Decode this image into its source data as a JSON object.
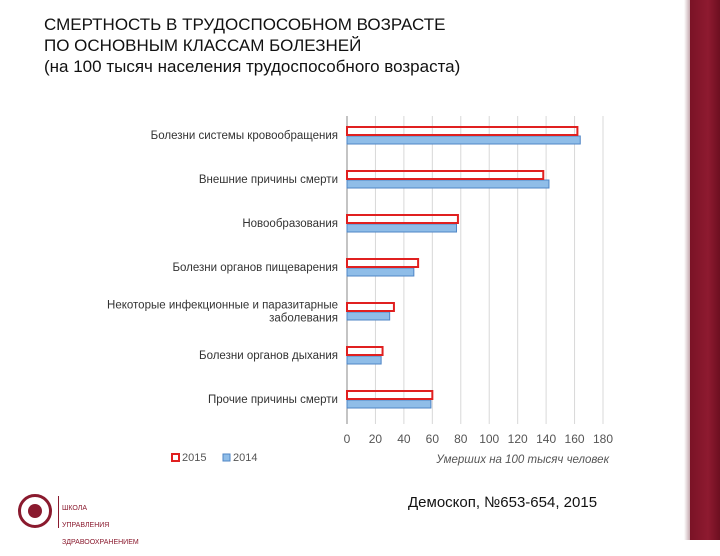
{
  "title_lines": [
    "СМЕРТНОСТЬ  В ТРУДОСПОСОБНОМ ВОЗРАСТЕ",
    "ПО ОСНОВНЫМ КЛАССАМ БОЛЕЗНЕЙ"
  ],
  "subtitle": "(на 100 тысяч населения трудоспособного возраста)",
  "source": "Демоскоп, №653-654, 2015",
  "logo": {
    "text_lines": [
      "ШКОЛА",
      "УПРАВЛЕНИЯ",
      "ЗДРАВООХРАНЕНИЕМ"
    ]
  },
  "colors": {
    "accent_band": "#8e1a30",
    "series_2015": "#e02020",
    "series_2014": "#8fbde8",
    "series_2014_border": "#4f86c6",
    "grid": "#d8d8d8"
  },
  "chart_data": {
    "type": "bar",
    "orientation": "horizontal",
    "categories": [
      [
        "Болезни системы кровообращения"
      ],
      [
        "Внешние причины смерти"
      ],
      [
        "Новообразования"
      ],
      [
        "Болезни органов пищеварения"
      ],
      [
        "Некоторые инфекционные и паразитарные",
        "заболевания"
      ],
      [
        "Болезни органов дыхания"
      ],
      [
        "Прочие причины смерти"
      ]
    ],
    "series": [
      {
        "name": "2015",
        "values": [
          162,
          138,
          78,
          50,
          33,
          25,
          60
        ]
      },
      {
        "name": "2014",
        "values": [
          164,
          142,
          77,
          47,
          30,
          24,
          59
        ]
      }
    ],
    "xlabel": "Умерших на 100 тысяч человек",
    "xlim": [
      0,
      180
    ],
    "xticks": [
      "0",
      "20",
      "40",
      "60",
      "80",
      "100",
      "120",
      "140",
      "160",
      "180"
    ],
    "grid": true,
    "legend_position": "bottom-left"
  }
}
